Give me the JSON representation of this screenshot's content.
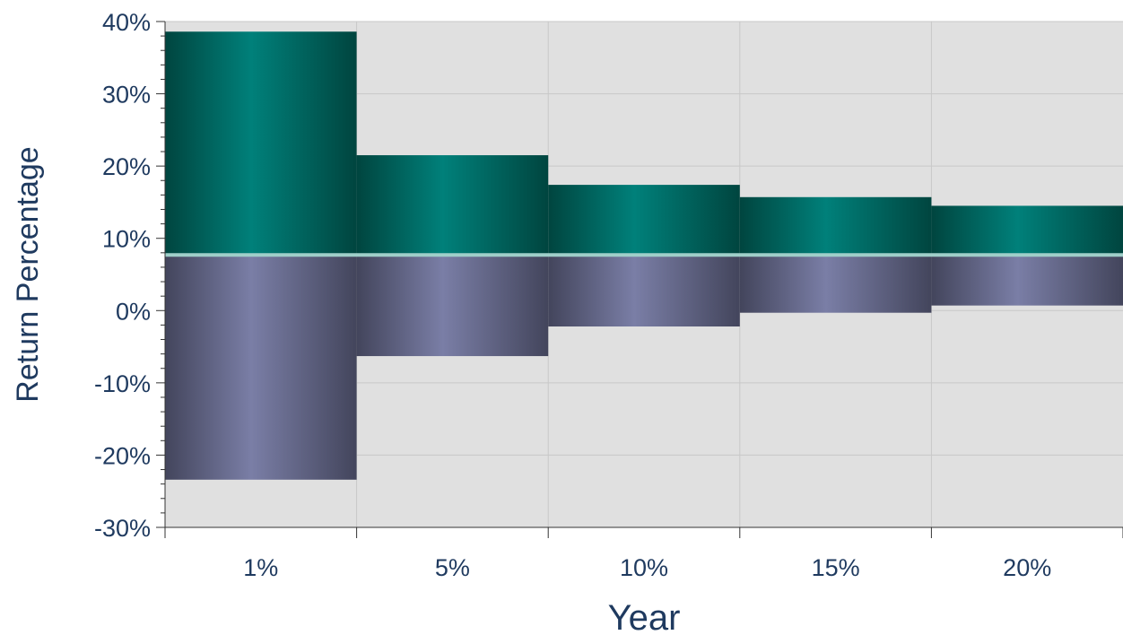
{
  "chart_data": {
    "type": "bar",
    "subtype": "floating-range",
    "xlabel": "Year",
    "ylabel": "Return Percentage",
    "categories": [
      "1%",
      "5%",
      "10%",
      "15%",
      "20%"
    ],
    "series": [
      {
        "values": [
          [
            7.7,
            38.6
          ],
          [
            7.7,
            21.5
          ],
          [
            7.7,
            17.4
          ],
          [
            7.7,
            15.7
          ],
          [
            7.7,
            14.5
          ]
        ]
      },
      {
        "values": [
          [
            -23.4,
            7.7
          ],
          [
            -6.3,
            7.7
          ],
          [
            -2.2,
            7.7
          ],
          [
            -0.3,
            7.7
          ],
          [
            0.7,
            7.7
          ]
        ]
      }
    ],
    "reference_line": 7.7,
    "ylim": [
      -30,
      40
    ],
    "yticks": [
      -30,
      -20,
      -10,
      0,
      10,
      20,
      30,
      40
    ],
    "ytick_labels": [
      "-30%",
      "-20%",
      "-10%",
      "0%",
      "10%",
      "20%",
      "30%",
      "40%"
    ],
    "grid": true,
    "colors": {
      "upper": "#00807a",
      "upper_dark": "#00453f",
      "lower": "#7a7ea6",
      "lower_dark": "#43455c",
      "reference_line": "#9fcfc9",
      "plot_background": "#e0e0e0",
      "gridline": "#c8c8c8",
      "text": "#1f3a5f"
    }
  }
}
